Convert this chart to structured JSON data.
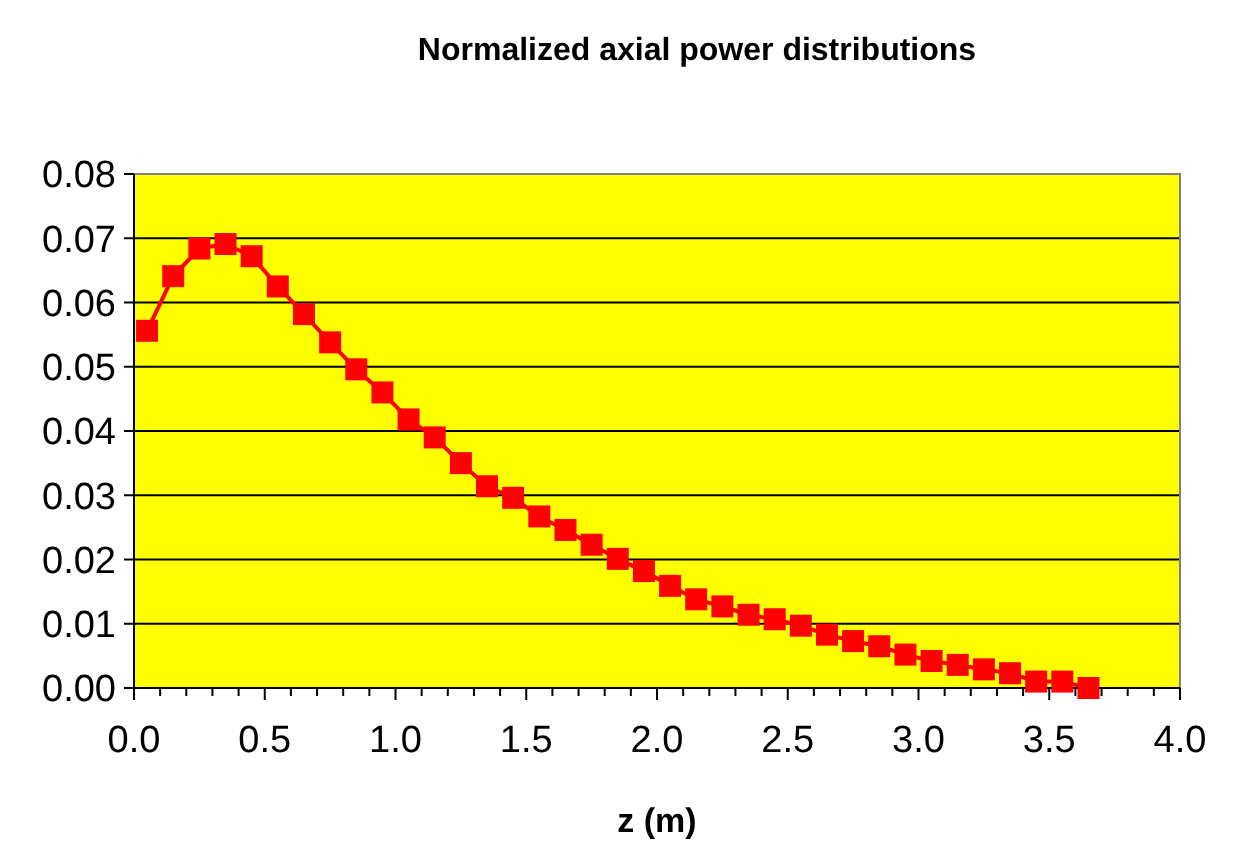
{
  "chart_data": {
    "type": "line",
    "title": "Normalized axial power distributions",
    "xlabel": "z (m)",
    "x": [
      0.05,
      0.15,
      0.25,
      0.35,
      0.45,
      0.55,
      0.65,
      0.75,
      0.85,
      0.95,
      1.05,
      1.15,
      1.25,
      1.35,
      1.45,
      1.55,
      1.65,
      1.75,
      1.85,
      1.95,
      2.05,
      2.15,
      2.25,
      2.35,
      2.45,
      2.55,
      2.65,
      2.75,
      2.85,
      2.95,
      3.05,
      3.15,
      3.25,
      3.35,
      3.45,
      3.55,
      3.65
    ],
    "series": [
      {
        "color": "#ff0000",
        "values": [
          0.0556,
          0.0641,
          0.0684,
          0.0691,
          0.0672,
          0.0625,
          0.0582,
          0.0538,
          0.0496,
          0.046,
          0.0418,
          0.039,
          0.035,
          0.0314,
          0.0296,
          0.0267,
          0.0246,
          0.0223,
          0.0201,
          0.0182,
          0.0159,
          0.0138,
          0.0127,
          0.0114,
          0.0107,
          0.0097,
          0.0083,
          0.0073,
          0.0065,
          0.0052,
          0.0042,
          0.0036,
          0.0029,
          0.0023,
          0.001,
          0.001,
          0
        ]
      }
    ],
    "xlim": [
      0,
      4
    ],
    "xticks": [
      {
        "value": 0,
        "label": "0.0"
      },
      {
        "value": 0.5,
        "label": "0.5"
      },
      {
        "value": 1,
        "label": "1.0"
      },
      {
        "value": 1.5,
        "label": "1.5"
      },
      {
        "value": 2,
        "label": "2.0"
      },
      {
        "value": 2.5,
        "label": "2.5"
      },
      {
        "value": 3,
        "label": "3.0"
      },
      {
        "value": 3.5,
        "label": "3.5"
      },
      {
        "value": 4,
        "label": "4.0"
      }
    ],
    "ylim": [
      0,
      0.08
    ],
    "yticks": [
      {
        "value": 0,
        "label": "0.00"
      },
      {
        "value": 0.01,
        "label": "0.01"
      },
      {
        "value": 0.02,
        "label": "0.02"
      },
      {
        "value": 0.03,
        "label": "0.03"
      },
      {
        "value": 0.04,
        "label": "0.04"
      },
      {
        "value": 0.05,
        "label": "0.05"
      },
      {
        "value": 0.06,
        "label": "0.06"
      },
      {
        "value": 0.07,
        "label": "0.07"
      },
      {
        "value": 0.08,
        "label": "0.08"
      }
    ],
    "grid": "y",
    "marker": "square",
    "line_style": "solid"
  }
}
